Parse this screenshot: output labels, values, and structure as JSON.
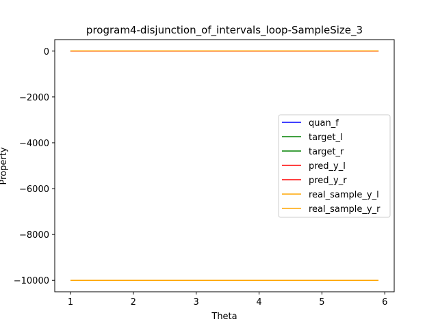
{
  "chart_data": {
    "type": "line",
    "title": "program4-disjunction_of_intervals_loop-SampleSize_3",
    "xlabel": "Theta",
    "ylabel": "Property",
    "xlim": [
      0.75,
      6.15
    ],
    "ylim": [
      -10500,
      500
    ],
    "xticks": [
      1,
      2,
      3,
      4,
      5,
      6
    ],
    "yticks": [
      0,
      -2000,
      -4000,
      -6000,
      -8000,
      -10000
    ],
    "xtick_labels": [
      "1",
      "2",
      "3",
      "4",
      "5",
      "6"
    ],
    "ytick_labels": [
      "0",
      "−2000",
      "−4000",
      "−6000",
      "−8000",
      "−10000"
    ],
    "legend_position": "center-right",
    "series": [
      {
        "name": "quan_f",
        "color": "#0000ff",
        "x": [
          1,
          1.5,
          2,
          2.5,
          3,
          3.5,
          4,
          4.5,
          5,
          5.5,
          5.9
        ],
        "y": [
          0,
          0,
          0,
          0,
          0,
          0,
          0,
          0,
          0,
          0,
          0
        ]
      },
      {
        "name": "target_l",
        "color": "#008000",
        "x": [
          1,
          1.5,
          2,
          2.5,
          3,
          3.5,
          4,
          4.5,
          5,
          5.5,
          5.9
        ],
        "y": [
          0,
          0,
          0,
          0,
          0,
          0,
          0,
          0,
          0,
          0,
          0
        ]
      },
      {
        "name": "target_r",
        "color": "#008000",
        "x": [
          1,
          1.5,
          2,
          2.5,
          3,
          3.5,
          4,
          4.5,
          5,
          5.5,
          5.9
        ],
        "y": [
          0,
          0,
          0,
          0,
          0,
          0,
          0,
          0,
          0,
          0,
          0
        ]
      },
      {
        "name": "pred_y_l",
        "color": "#ff0000",
        "x": [
          1,
          1.5,
          2,
          2.5,
          3,
          3.5,
          4,
          4.5,
          5,
          5.5,
          5.9
        ],
        "y": [
          0,
          0,
          0,
          0,
          0,
          0,
          0,
          0,
          0,
          0,
          0
        ]
      },
      {
        "name": "pred_y_r",
        "color": "#ff0000",
        "x": [
          1,
          1.5,
          2,
          2.5,
          3,
          3.5,
          4,
          4.5,
          5,
          5.5,
          5.9
        ],
        "y": [
          0,
          0,
          0,
          0,
          0,
          0,
          0,
          0,
          0,
          0,
          0
        ]
      },
      {
        "name": "real_sample_y_l",
        "color": "#ffa500",
        "x": [
          1,
          1.5,
          2,
          2.5,
          3,
          3.5,
          4,
          4.5,
          5,
          5.5,
          5.9
        ],
        "y": [
          -10000,
          -10000,
          -10000,
          -10000,
          -10000,
          -10000,
          -10000,
          -10000,
          -10000,
          -10000,
          -10000
        ]
      },
      {
        "name": "real_sample_y_r",
        "color": "#ffa500",
        "x": [
          1,
          1.5,
          2,
          2.5,
          3,
          3.5,
          4,
          4.5,
          5,
          5.5,
          5.9
        ],
        "y": [
          10,
          10,
          10,
          10,
          10,
          10,
          10,
          10,
          10,
          10,
          10
        ]
      }
    ]
  }
}
